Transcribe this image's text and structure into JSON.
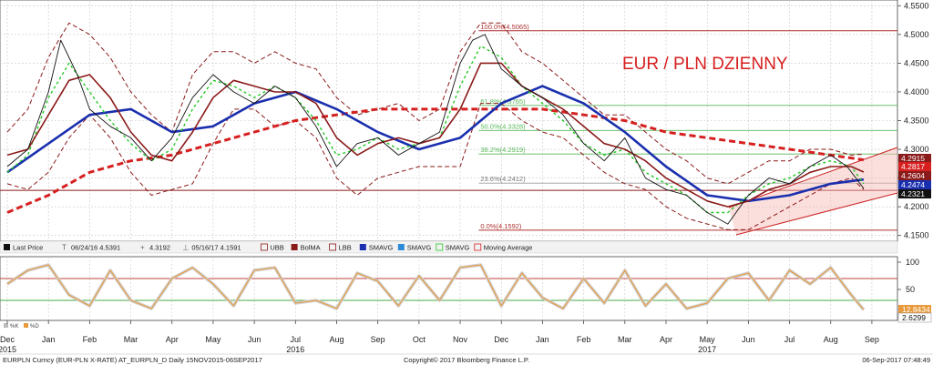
{
  "chart_data": [
    {
      "type": "line",
      "title": "EUR / PLN DZIENNY",
      "ylim": [
        4.14,
        4.56
      ],
      "y_ticks": [
        "4.5500",
        "4.5000",
        "4.4500",
        "4.4000",
        "4.3500",
        "4.3000",
        "4.2500",
        "4.2000",
        "4.1500"
      ],
      "grid": true,
      "legend_position": "bottom-left",
      "x_month_ticks": [
        {
          "label": "Dec",
          "x": 0.0
        },
        {
          "label": "Jan",
          "x": 1.0
        },
        {
          "label": "Feb",
          "x": 2.0
        },
        {
          "label": "Mar",
          "x": 3.0
        },
        {
          "label": "Apr",
          "x": 4.0
        },
        {
          "label": "May",
          "x": 5.0
        },
        {
          "label": "Jun",
          "x": 6.0
        },
        {
          "label": "Jul",
          "x": 7.0
        },
        {
          "label": "Aug",
          "x": 8.0
        },
        {
          "label": "Sep",
          "x": 9.0
        },
        {
          "label": "Oct",
          "x": 10.0
        },
        {
          "label": "Nov",
          "x": 11.0
        },
        {
          "label": "Dec",
          "x": 12.0
        },
        {
          "label": "Jan",
          "x": 13.0
        },
        {
          "label": "Feb",
          "x": 14.0
        },
        {
          "label": "Mar",
          "x": 15.0
        },
        {
          "label": "Apr",
          "x": 16.0
        },
        {
          "label": "May",
          "x": 17.0
        },
        {
          "label": "Jun",
          "x": 18.0
        },
        {
          "label": "Jul",
          "x": 19.0
        },
        {
          "label": "Aug",
          "x": 20.0
        },
        {
          "label": "Sep",
          "x": 21.0
        }
      ],
      "year_labels": [
        {
          "label": "2015",
          "x": 0.0
        },
        {
          "label": "2016",
          "x": 7.0
        },
        {
          "label": "2017",
          "x": 17.0
        }
      ],
      "legend": [
        {
          "label": "Last Price",
          "color": "#111111",
          "icon": "square-icon"
        },
        {
          "label": "06/24/16 4.5391",
          "color": "#666666",
          "icon": "high-marker-icon"
        },
        {
          "label": "4.3192",
          "color": "#666666",
          "icon": "plus-icon"
        },
        {
          "label": "05/16/17 4.1591",
          "color": "#666666",
          "icon": "low-marker-icon"
        },
        {
          "label": "UBB",
          "color": "#8b1a1a",
          "icon": "dashed-line-icon"
        },
        {
          "label": "BolMA",
          "color": "#8b1a1a",
          "icon": "square-icon"
        },
        {
          "label": "LBB",
          "color": "#8b1a1a",
          "icon": "dashed-line-icon"
        },
        {
          "label": "SMAVG",
          "color": "#1a2fae",
          "icon": "square-icon"
        },
        {
          "label": "SMAVG",
          "color": "#2d8ad6",
          "icon": "square-icon"
        },
        {
          "label": "SMAVG",
          "color": "#22c922",
          "icon": "dashed-line-icon"
        },
        {
          "label": "Moving Average",
          "color": "#d62020",
          "icon": "dashed-line-icon"
        }
      ],
      "price_badges": [
        {
          "label": "4.2915",
          "color": "#8b1a1a"
        },
        {
          "label": "4.2817",
          "color": "#d62020"
        },
        {
          "label": "4.2604",
          "color": "#8b1a1a"
        },
        {
          "label": "4.2474",
          "color": "#1a2fae"
        },
        {
          "label": "4.2321",
          "color": "#111111"
        }
      ],
      "fibonacci": [
        {
          "label": "100.0%(4.5065)",
          "y": 4.5065
        },
        {
          "label": "61.8%(4.3765)",
          "y": 4.3765
        },
        {
          "label": "50.0%(4.3328)",
          "y": 4.3328
        },
        {
          "label": "38.2%(4.2919)",
          "y": 4.2919
        },
        {
          "label": "23.6%(4.2412)",
          "y": 4.2412
        },
        {
          "label": "0.0%(4.1592)",
          "y": 4.1592
        }
      ],
      "support_line": 4.2285,
      "series": [
        {
          "name": "Last Price",
          "color": "#111111",
          "x": [
            0,
            0.5,
            1.0,
            1.3,
            1.7,
            2.0,
            2.5,
            3.0,
            3.5,
            4.0,
            4.5,
            5.0,
            5.5,
            6.0,
            6.5,
            7.0,
            7.5,
            8.0,
            8.5,
            9.0,
            9.5,
            10.0,
            10.5,
            11.0,
            11.3,
            11.6,
            12.0,
            12.5,
            13.0,
            13.5,
            14.0,
            14.5,
            15.0,
            15.5,
            16.0,
            16.5,
            17.0,
            17.5,
            18.0,
            18.5,
            19.0,
            19.5,
            20.0,
            20.4,
            20.8
          ],
          "y": [
            4.27,
            4.3,
            4.4,
            4.49,
            4.43,
            4.37,
            4.34,
            4.32,
            4.28,
            4.32,
            4.39,
            4.43,
            4.4,
            4.38,
            4.41,
            4.39,
            4.34,
            4.27,
            4.31,
            4.32,
            4.29,
            4.31,
            4.33,
            4.45,
            4.49,
            4.5,
            4.44,
            4.41,
            4.39,
            4.36,
            4.31,
            4.28,
            4.32,
            4.25,
            4.23,
            4.22,
            4.19,
            4.17,
            4.22,
            4.25,
            4.24,
            4.27,
            4.29,
            4.27,
            4.232
          ]
        },
        {
          "name": "BolMA",
          "color": "#8b1a1a",
          "x": [
            0,
            0.5,
            1.0,
            1.5,
            2.0,
            2.5,
            3.0,
            3.5,
            4.0,
            4.5,
            5.0,
            5.5,
            6.0,
            6.5,
            7.0,
            7.5,
            8.0,
            8.5,
            9.0,
            9.5,
            10.0,
            10.5,
            11.0,
            11.5,
            12.0,
            12.5,
            13.0,
            13.5,
            14.0,
            14.5,
            15.0,
            15.5,
            16.0,
            16.5,
            17.0,
            17.5,
            18.0,
            18.5,
            19.0,
            19.5,
            20.0,
            20.5,
            20.8
          ],
          "y": [
            4.29,
            4.3,
            4.36,
            4.42,
            4.43,
            4.39,
            4.33,
            4.29,
            4.28,
            4.33,
            4.39,
            4.42,
            4.41,
            4.4,
            4.4,
            4.38,
            4.32,
            4.29,
            4.31,
            4.32,
            4.31,
            4.32,
            4.37,
            4.45,
            4.45,
            4.41,
            4.39,
            4.37,
            4.34,
            4.31,
            4.3,
            4.28,
            4.25,
            4.23,
            4.21,
            4.2,
            4.21,
            4.23,
            4.24,
            4.26,
            4.27,
            4.27,
            4.2604
          ]
        },
        {
          "name": "SMAVG",
          "color": "#1a2fae",
          "x": [
            0,
            1.0,
            2.0,
            3.0,
            4.0,
            5.0,
            6.0,
            7.0,
            8.0,
            9.0,
            10.0,
            11.0,
            12.0,
            13.0,
            14.0,
            15.0,
            16.0,
            17.0,
            18.0,
            19.0,
            20.0,
            20.8
          ],
          "y": [
            4.26,
            4.31,
            4.36,
            4.37,
            4.33,
            4.34,
            4.38,
            4.4,
            4.37,
            4.33,
            4.3,
            4.32,
            4.38,
            4.41,
            4.38,
            4.33,
            4.27,
            4.22,
            4.21,
            4.22,
            4.24,
            4.2474
          ]
        },
        {
          "name": "SMAVG",
          "color": "#22c922",
          "x": [
            0,
            0.5,
            1.0,
            1.5,
            2.0,
            2.5,
            3.0,
            3.5,
            4.0,
            4.5,
            5.0,
            5.5,
            6.0,
            6.5,
            7.0,
            7.5,
            8.0,
            8.5,
            9.0,
            9.5,
            10.0,
            10.5,
            11.0,
            11.5,
            12.0,
            12.5,
            13.0,
            13.5,
            14.0,
            14.5,
            15.0,
            15.5,
            16.0,
            16.5,
            17.0,
            17.5,
            18.0,
            18.5,
            19.0,
            19.5,
            20.0,
            20.5,
            20.8
          ],
          "y": [
            4.26,
            4.29,
            4.39,
            4.45,
            4.4,
            4.35,
            4.31,
            4.28,
            4.3,
            4.37,
            4.42,
            4.41,
            4.39,
            4.41,
            4.39,
            4.35,
            4.29,
            4.3,
            4.32,
            4.3,
            4.31,
            4.32,
            4.41,
            4.48,
            4.46,
            4.41,
            4.38,
            4.35,
            4.31,
            4.29,
            4.3,
            4.26,
            4.24,
            4.22,
            4.19,
            4.19,
            4.22,
            4.24,
            4.25,
            4.27,
            4.28,
            4.27,
            4.24
          ]
        },
        {
          "name": "Moving Average",
          "color": "#d62020",
          "x": [
            0,
            1.0,
            2.0,
            3.0,
            4.0,
            5.0,
            6.0,
            7.0,
            8.0,
            9.0,
            10.0,
            11.0,
            12.0,
            13.0,
            14.0,
            15.0,
            16.0,
            17.0,
            18.0,
            19.0,
            20.0,
            20.8
          ],
          "y": [
            4.19,
            4.22,
            4.26,
            4.28,
            4.29,
            4.31,
            4.33,
            4.35,
            4.36,
            4.37,
            4.37,
            4.37,
            4.37,
            4.37,
            4.36,
            4.35,
            4.33,
            4.32,
            4.31,
            4.3,
            4.29,
            4.2817
          ]
        },
        {
          "name": "UBB",
          "color": "#8b1a1a",
          "x": [
            0,
            0.5,
            1.0,
            1.5,
            2.0,
            2.5,
            3.0,
            3.5,
            4.0,
            4.5,
            5.0,
            5.5,
            6.0,
            6.5,
            7.0,
            7.5,
            8.0,
            8.5,
            9.0,
            9.5,
            10.0,
            10.5,
            11.0,
            11.5,
            12.0,
            12.5,
            13.0,
            13.5,
            14.0,
            14.5,
            15.0,
            15.5,
            16.0,
            16.5,
            17.0,
            17.5,
            18.0,
            18.5,
            19.0,
            19.5,
            20.0,
            20.5,
            20.8
          ],
          "y": [
            4.33,
            4.37,
            4.46,
            4.52,
            4.5,
            4.46,
            4.4,
            4.36,
            4.33,
            4.43,
            4.47,
            4.47,
            4.45,
            4.47,
            4.45,
            4.44,
            4.39,
            4.36,
            4.37,
            4.38,
            4.35,
            4.37,
            4.47,
            4.52,
            4.52,
            4.47,
            4.45,
            4.42,
            4.39,
            4.36,
            4.36,
            4.33,
            4.3,
            4.28,
            4.25,
            4.24,
            4.26,
            4.28,
            4.28,
            4.3,
            4.3,
            4.29,
            4.2915
          ]
        },
        {
          "name": "LBB",
          "color": "#8b1a1a",
          "x": [
            0,
            0.5,
            1.0,
            1.5,
            2.0,
            2.5,
            3.0,
            3.5,
            4.0,
            4.5,
            5.0,
            5.5,
            6.0,
            6.5,
            7.0,
            7.5,
            8.0,
            8.5,
            9.0,
            9.5,
            10.0,
            10.5,
            11.0,
            11.5,
            12.0,
            12.5,
            13.0,
            13.5,
            14.0,
            14.5,
            15.0,
            15.5,
            16.0,
            16.5,
            17.0,
            17.5,
            18.0,
            18.5,
            19.0,
            19.5,
            20.0,
            20.5,
            20.8
          ],
          "y": [
            4.24,
            4.23,
            4.26,
            4.32,
            4.36,
            4.32,
            4.26,
            4.22,
            4.23,
            4.24,
            4.31,
            4.37,
            4.37,
            4.34,
            4.35,
            4.32,
            4.25,
            4.22,
            4.25,
            4.26,
            4.27,
            4.27,
            4.27,
            4.38,
            4.38,
            4.35,
            4.33,
            4.32,
            4.29,
            4.26,
            4.24,
            4.23,
            4.2,
            4.18,
            4.17,
            4.16,
            4.16,
            4.18,
            4.2,
            4.22,
            4.24,
            4.25,
            4.23
          ]
        }
      ]
    },
    {
      "type": "line",
      "ylim": [
        0,
        100
      ],
      "y_ticks": [
        "100",
        "50"
      ],
      "legend": [
        {
          "label": "%K",
          "color": "#bbbbbb",
          "icon": "square-icon"
        },
        {
          "label": "%D",
          "color": "#e89a3c",
          "icon": "square-icon"
        }
      ],
      "price_badges": [
        {
          "label": "12.8434",
          "color": "#e89a3c"
        },
        {
          "label": "2.6299",
          "color": "#ffffff"
        }
      ],
      "reference_lines": [
        70,
        30
      ],
      "series": [
        {
          "name": "%D",
          "color": "#e89a3c",
          "x": [
            0,
            0.5,
            1.0,
            1.5,
            2.0,
            2.5,
            3.0,
            3.5,
            4.0,
            4.5,
            5.0,
            5.5,
            6.0,
            6.5,
            7.0,
            7.5,
            8.0,
            8.5,
            9.0,
            9.5,
            10.0,
            10.5,
            11.0,
            11.5,
            12.0,
            12.5,
            13.0,
            13.5,
            14.0,
            14.5,
            15.0,
            15.5,
            16.0,
            16.5,
            17.0,
            17.5,
            18.0,
            18.5,
            19.0,
            19.5,
            20.0,
            20.5,
            20.8
          ],
          "y": [
            60,
            85,
            95,
            40,
            20,
            85,
            30,
            15,
            70,
            90,
            60,
            20,
            85,
            90,
            25,
            30,
            15,
            80,
            65,
            20,
            75,
            30,
            90,
            95,
            20,
            80,
            35,
            15,
            70,
            25,
            85,
            20,
            60,
            15,
            25,
            70,
            80,
            30,
            85,
            60,
            90,
            40,
            12.8
          ]
        }
      ]
    }
  ],
  "footer": {
    "left": "EURPLN Curncy (EUR-PLN X-RATE) AT_EURPLN_D  Daily 15NOV2015-06SEP2017",
    "center": "Copyright© 2017 Bloomberg Finance L.P.",
    "right": "06-Sep-2017 07:48:49"
  }
}
